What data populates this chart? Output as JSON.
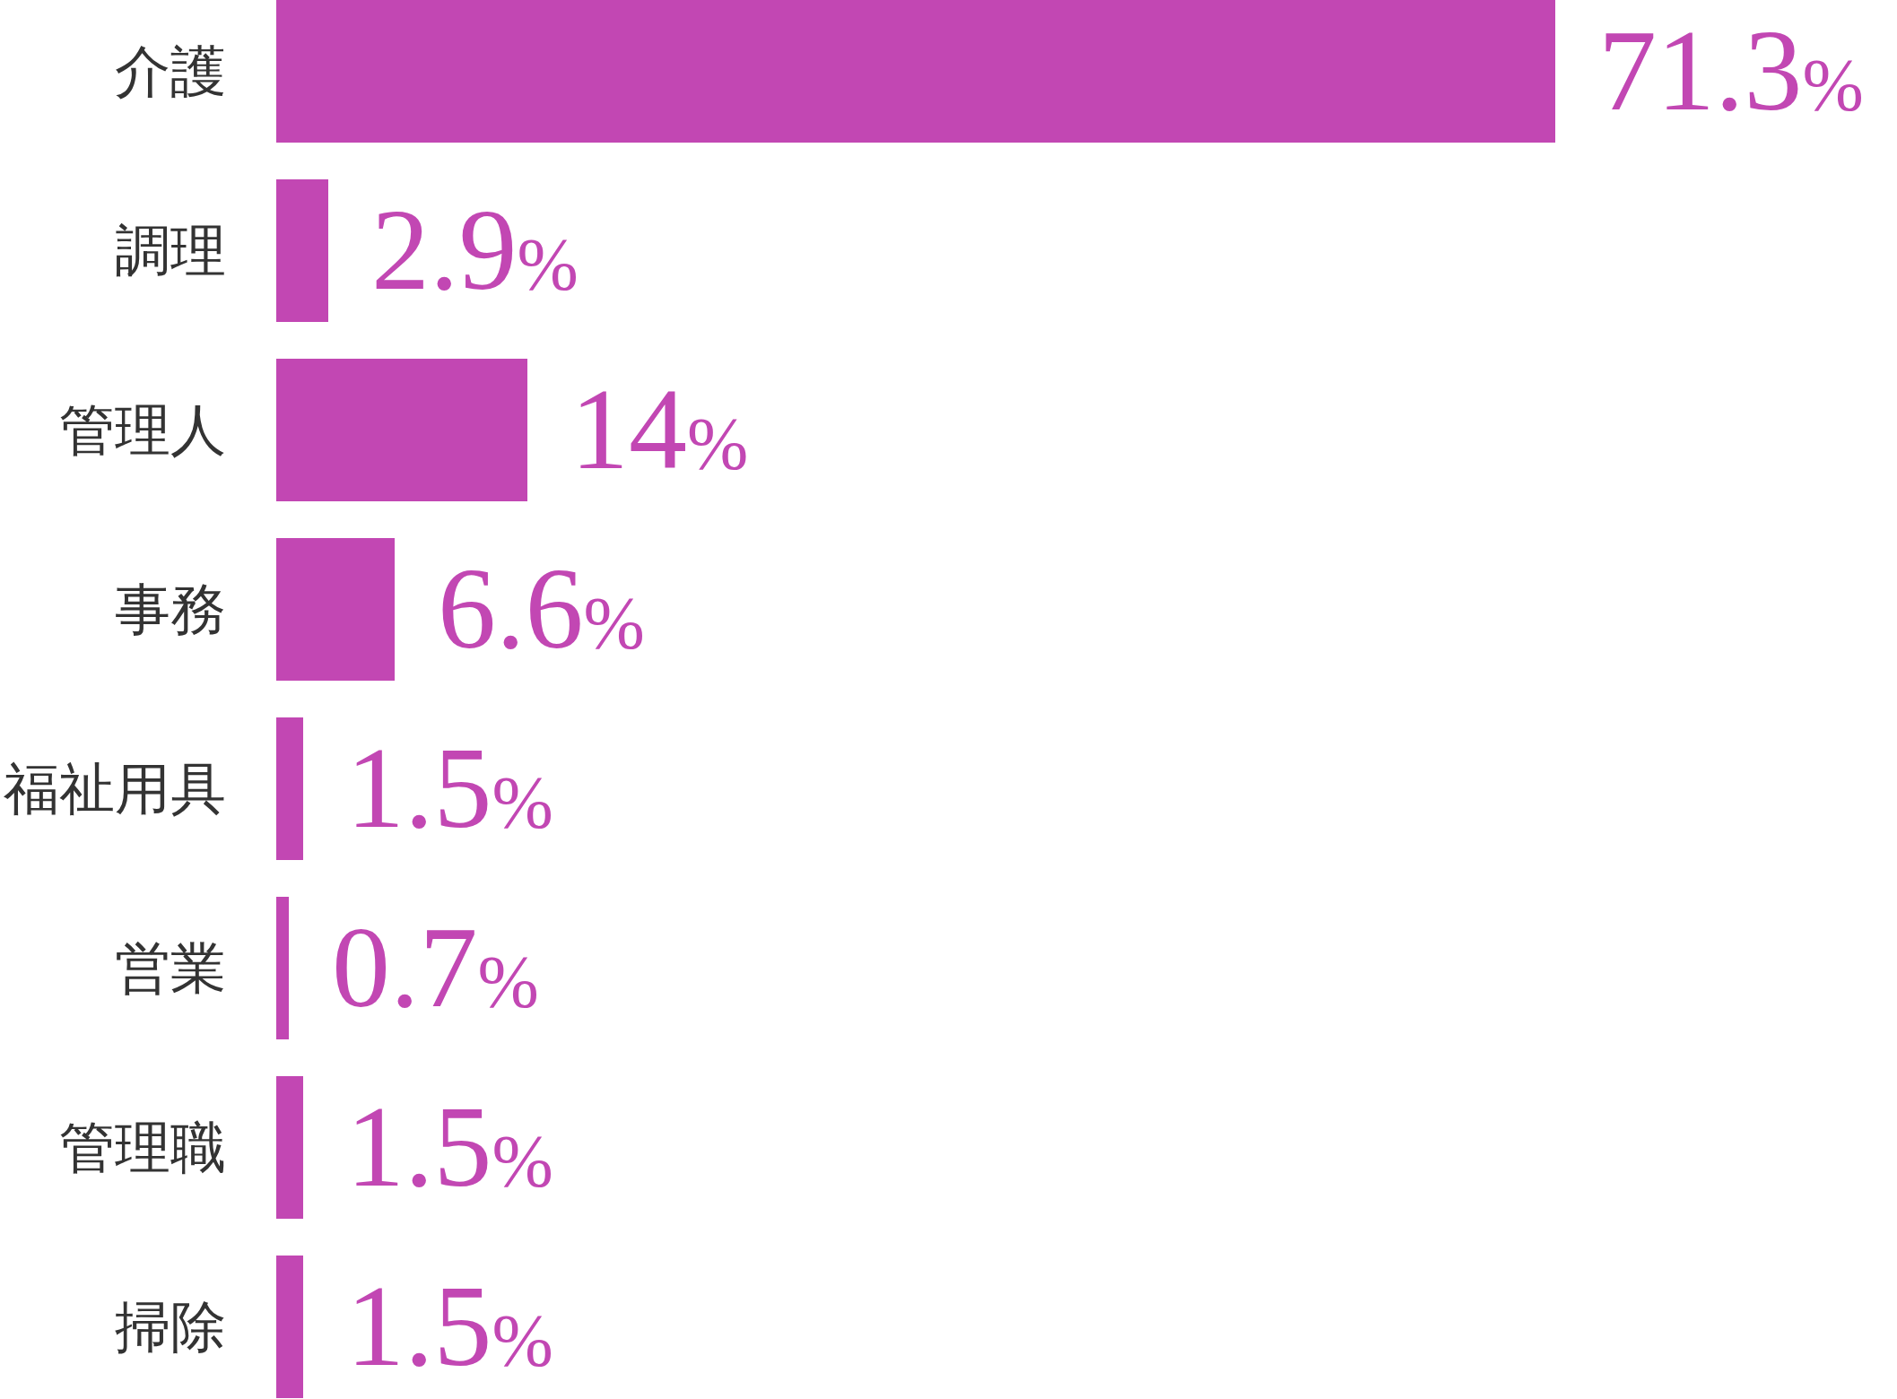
{
  "chart_data": {
    "type": "bar",
    "orientation": "horizontal",
    "categories": [
      "介護",
      "調理",
      "管理人",
      "事務",
      "福祉用具",
      "営業",
      "管理職",
      "掃除"
    ],
    "values": [
      71.3,
      2.9,
      14,
      6.6,
      1.5,
      0.7,
      1.5,
      1.5
    ],
    "value_labels": [
      "71.3%",
      "2.9%",
      "14%",
      "6.6%",
      "1.5%",
      "0.7%",
      "1.5%",
      "1.5%"
    ],
    "color": "#c247b3"
  }
}
